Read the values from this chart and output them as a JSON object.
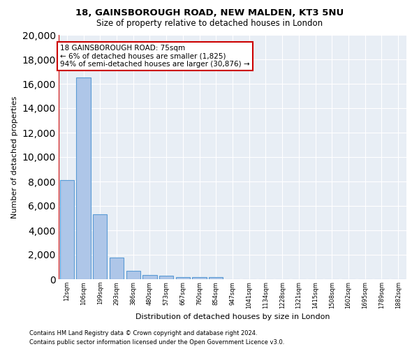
{
  "title": "18, GAINSBOROUGH ROAD, NEW MALDEN, KT3 5NU",
  "subtitle": "Size of property relative to detached houses in London",
  "xlabel": "Distribution of detached houses by size in London",
  "ylabel": "Number of detached properties",
  "x_labels": [
    "12sqm",
    "106sqm",
    "199sqm",
    "293sqm",
    "386sqm",
    "480sqm",
    "573sqm",
    "667sqm",
    "760sqm",
    "854sqm",
    "947sqm",
    "1041sqm",
    "1134sqm",
    "1228sqm",
    "1321sqm",
    "1415sqm",
    "1508sqm",
    "1602sqm",
    "1695sqm",
    "1789sqm",
    "1882sqm"
  ],
  "bar_values": [
    8100,
    16500,
    5300,
    1750,
    700,
    350,
    270,
    200,
    175,
    200,
    0,
    0,
    0,
    0,
    0,
    0,
    0,
    0,
    0,
    0,
    0
  ],
  "bar_color": "#aec6e8",
  "bar_edge_color": "#5b9bd5",
  "bar_edge_width": 0.8,
  "vline_color": "#cc0000",
  "annotation_text": "18 GAINSBOROUGH ROAD: 75sqm\n← 6% of detached houses are smaller (1,825)\n94% of semi-detached houses are larger (30,876) →",
  "annotation_box_color": "#cc0000",
  "ylim": [
    0,
    20000
  ],
  "yticks": [
    0,
    2000,
    4000,
    6000,
    8000,
    10000,
    12000,
    14000,
    16000,
    18000,
    20000
  ],
  "background_color": "#e8eef5",
  "footer1": "Contains HM Land Registry data © Crown copyright and database right 2024.",
  "footer2": "Contains public sector information licensed under the Open Government Licence v3.0."
}
